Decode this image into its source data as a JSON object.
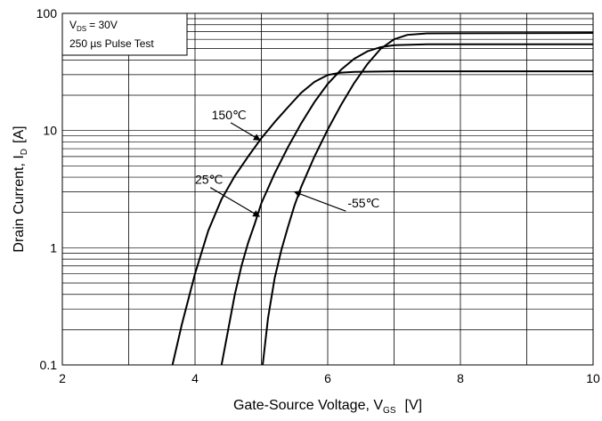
{
  "chart_data": {
    "type": "line",
    "title": "",
    "xlabel": {
      "main": "Gate-Source Voltage, V",
      "sub": "GS",
      "unit": "[V]"
    },
    "ylabel": {
      "main": "Drain Current, I",
      "sub": "D",
      "unit": "[A]"
    },
    "xlim": [
      2,
      10
    ],
    "ylim": [
      0.1,
      100
    ],
    "yscale": "log",
    "x_ticks": [
      2,
      4,
      6,
      8,
      10
    ],
    "y_ticks": [
      {
        "value": 0.1,
        "label": "0.1"
      },
      {
        "value": 1,
        "label": "1"
      },
      {
        "value": 10,
        "label": "10"
      },
      {
        "value": 100,
        "label": "100"
      }
    ],
    "grid": true,
    "legend_box": {
      "line1_main": "V",
      "line1_sub": "DS",
      "line1_rest": "= 30V",
      "line2": "250 µs Pulse Test"
    },
    "series": [
      {
        "name": "150℃",
        "color": "#000000",
        "points": [
          [
            3.66,
            0.1
          ],
          [
            3.8,
            0.22
          ],
          [
            4.0,
            0.6
          ],
          [
            4.2,
            1.4
          ],
          [
            4.4,
            2.6
          ],
          [
            4.6,
            4.1
          ],
          [
            4.8,
            6.0
          ],
          [
            5.0,
            8.6
          ],
          [
            5.2,
            11.8
          ],
          [
            5.4,
            15.8
          ],
          [
            5.6,
            21.0
          ],
          [
            5.8,
            26.0
          ],
          [
            6.0,
            29.8
          ],
          [
            6.2,
            31.2
          ],
          [
            6.4,
            31.7
          ],
          [
            7.0,
            32.0
          ],
          [
            10.0,
            32.0
          ]
        ]
      },
      {
        "name": "25℃",
        "color": "#000000",
        "points": [
          [
            4.4,
            0.1
          ],
          [
            4.5,
            0.2
          ],
          [
            4.6,
            0.4
          ],
          [
            4.7,
            0.7
          ],
          [
            4.8,
            1.1
          ],
          [
            4.9,
            1.6
          ],
          [
            5.0,
            2.4
          ],
          [
            5.2,
            4.3
          ],
          [
            5.4,
            7.2
          ],
          [
            5.6,
            11.5
          ],
          [
            5.8,
            17.5
          ],
          [
            6.0,
            25.0
          ],
          [
            6.2,
            33.0
          ],
          [
            6.4,
            41.0
          ],
          [
            6.6,
            47.5
          ],
          [
            6.8,
            51.5
          ],
          [
            7.0,
            53.5
          ],
          [
            7.5,
            54.5
          ],
          [
            10.0,
            54.5
          ]
        ]
      },
      {
        "name": "-55℃",
        "color": "#000000",
        "points": [
          [
            5.02,
            0.1
          ],
          [
            5.1,
            0.25
          ],
          [
            5.2,
            0.55
          ],
          [
            5.3,
            0.95
          ],
          [
            5.4,
            1.5
          ],
          [
            5.5,
            2.3
          ],
          [
            5.6,
            3.3
          ],
          [
            5.8,
            6.0
          ],
          [
            6.0,
            10.2
          ],
          [
            6.2,
            16.5
          ],
          [
            6.4,
            25.5
          ],
          [
            6.6,
            37.0
          ],
          [
            6.8,
            50.0
          ],
          [
            7.0,
            60.0
          ],
          [
            7.2,
            65.5
          ],
          [
            7.5,
            67.5
          ],
          [
            10.0,
            68.0
          ]
        ]
      }
    ],
    "annotations": [
      {
        "text": "150℃",
        "label_x": 4.25,
        "label_y": 12.5,
        "arrow_x": 4.98,
        "arrow_y": 8.3
      },
      {
        "text": "25℃",
        "label_x": 4.0,
        "label_y": 3.5,
        "arrow_x": 4.97,
        "arrow_y": 1.85
      },
      {
        "text": "-55℃",
        "label_x": 6.3,
        "label_y": 2.2,
        "arrow_x": 5.5,
        "arrow_y": 3.0
      }
    ]
  }
}
